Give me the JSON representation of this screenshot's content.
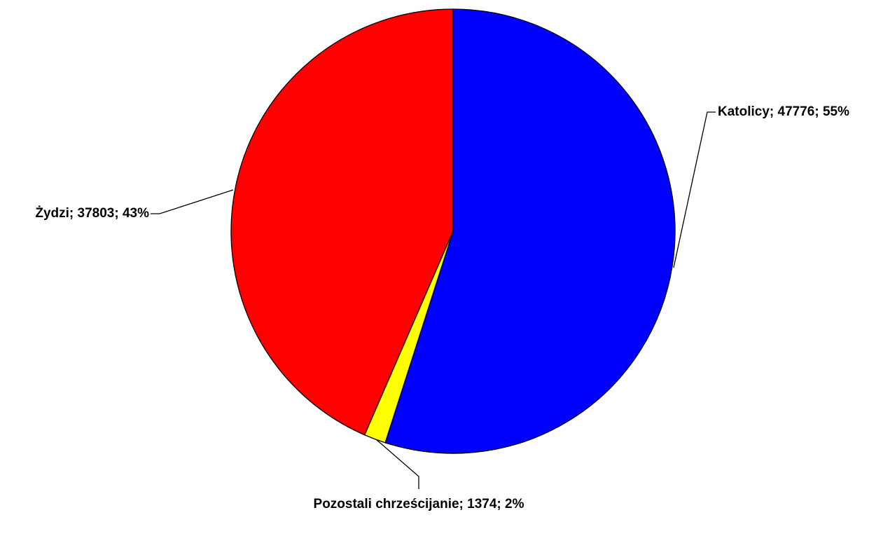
{
  "chart_data": {
    "type": "pie",
    "categories": [
      "Katolicy",
      "Pozostali chrześcijanie",
      "Żydzi"
    ],
    "values": [
      47776,
      1374,
      37803
    ],
    "value_labels": [
      "Katolicy; 47776; 55%",
      "Pozostali chrześcijanie; 1374; 2%",
      "Żydzi; 37803; 43%"
    ],
    "colors": [
      "#0000ff",
      "#ffff00",
      "#ff0000"
    ]
  }
}
